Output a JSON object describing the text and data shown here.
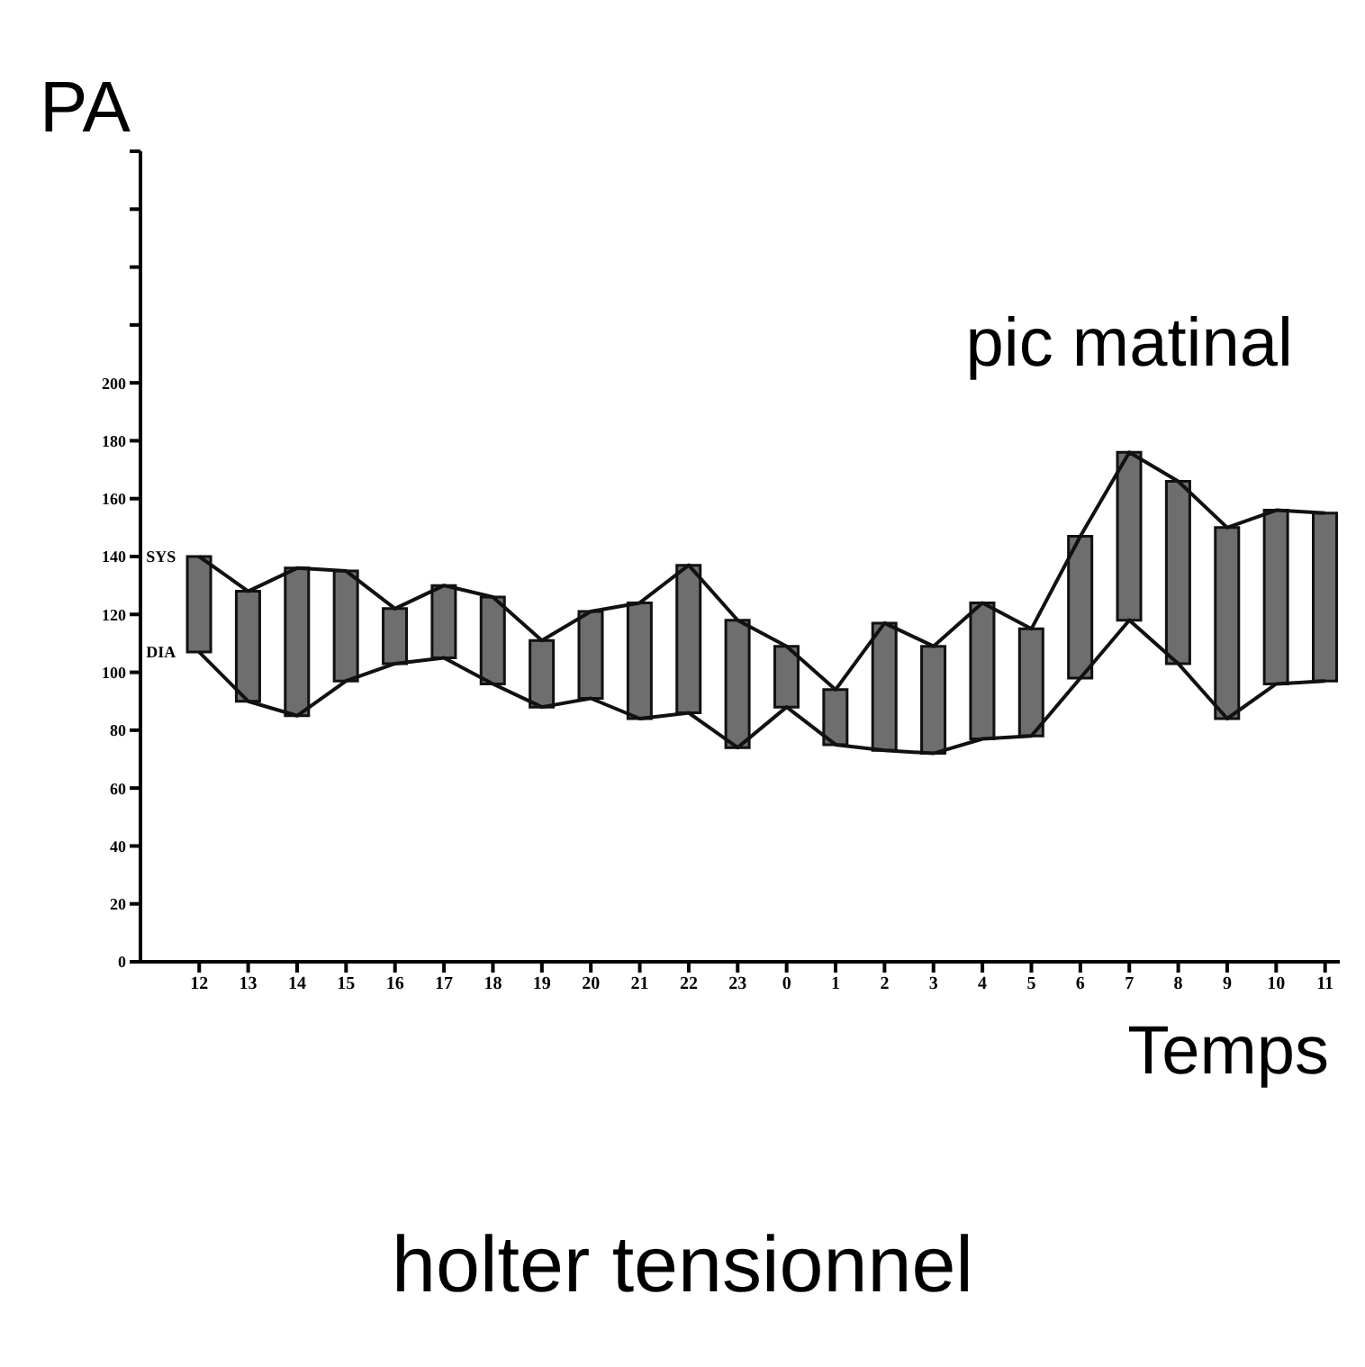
{
  "chart_data": {
    "type": "bar",
    "title": "holter tensionnel",
    "xlabel": "Temps",
    "ylabel": "PA",
    "annotations": [
      {
        "text": "SYS",
        "x": "12",
        "y": 140
      },
      {
        "text": "DIA",
        "x": "12",
        "y": 107
      },
      {
        "text": "pic matinal",
        "x": "7",
        "y": 176
      }
    ],
    "categories": [
      "12",
      "13",
      "14",
      "15",
      "16",
      "17",
      "18",
      "19",
      "20",
      "21",
      "22",
      "23",
      "0",
      "1",
      "2",
      "3",
      "4",
      "5",
      "6",
      "7",
      "8",
      "9",
      "10",
      "11"
    ],
    "series": [
      {
        "color": "#6e6e6e",
        "base": [
          107,
          90,
          85,
          97,
          103,
          105,
          96,
          88,
          91,
          84,
          86,
          74,
          88,
          75,
          73,
          72,
          77,
          78,
          98,
          118,
          103,
          84,
          96,
          97
        ],
        "values": [
          33,
          38,
          51,
          38,
          19,
          25,
          30,
          23,
          30,
          40,
          51,
          44,
          21,
          19,
          44,
          37,
          47,
          37,
          49,
          58,
          63,
          66,
          60,
          58
        ]
      },
      {
        "type": "line",
        "color": "#111111",
        "values": [
          140,
          128,
          136,
          135,
          122,
          130,
          126,
          111,
          121,
          124,
          137,
          118,
          109,
          94,
          117,
          109,
          124,
          115,
          147,
          176,
          166,
          150,
          156,
          155
        ]
      },
      {
        "type": "line",
        "color": "#111111",
        "values": [
          107,
          90,
          85,
          97,
          103,
          105,
          96,
          88,
          91,
          84,
          86,
          74,
          88,
          75,
          73,
          72,
          77,
          78,
          98,
          118,
          103,
          84,
          96,
          97
        ]
      }
    ],
    "ylim": [
      0,
      280
    ],
    "yticks": [
      0,
      20,
      40,
      60,
      80,
      100,
      120,
      140,
      160,
      180,
      200,
      {
        "value": 220,
        "label": null
      },
      {
        "value": 240,
        "label": null
      },
      {
        "value": 260,
        "label": null
      },
      {
        "value": 280,
        "label": null
      }
    ],
    "legend": false
  }
}
